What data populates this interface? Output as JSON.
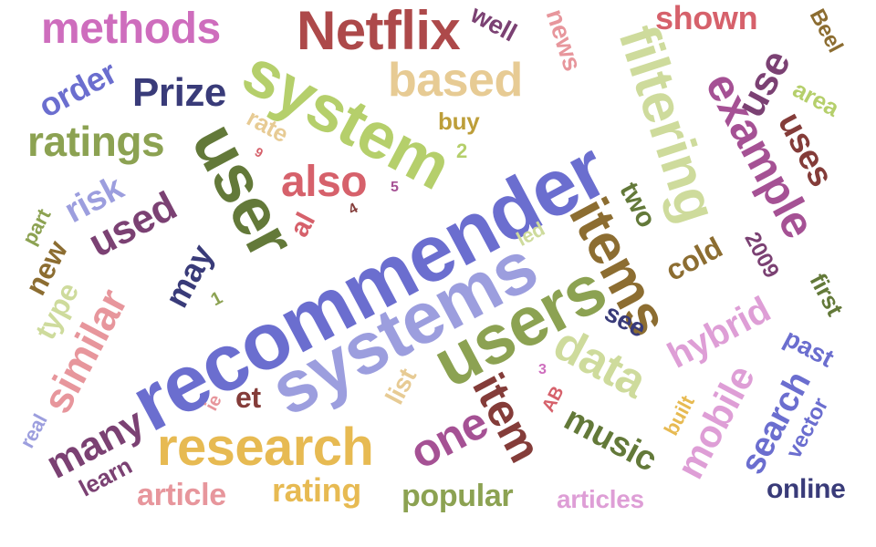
{
  "words": [
    {
      "id": "recommender",
      "text": "recommender",
      "color": "#6b6ecf"
    },
    {
      "id": "systems",
      "text": "systems",
      "color": "#9c9ede"
    },
    {
      "id": "system",
      "text": "system",
      "color": "#b5cf6b"
    },
    {
      "id": "users",
      "text": "users",
      "color": "#8ca252"
    },
    {
      "id": "user",
      "text": "user",
      "color": "#637939"
    },
    {
      "id": "netflix",
      "text": "Netflix",
      "color": "#ad494a"
    },
    {
      "id": "filtering",
      "text": "filtering",
      "color": "#cedb9c"
    },
    {
      "id": "items",
      "text": "items",
      "color": "#8c6d31"
    },
    {
      "id": "research",
      "text": "research",
      "color": "#e7ba52"
    },
    {
      "id": "example",
      "text": "example",
      "color": "#a55194"
    },
    {
      "id": "based",
      "text": "based",
      "color": "#e7cb94"
    },
    {
      "id": "methods",
      "text": "methods",
      "color": "#ce6dbd"
    },
    {
      "id": "data",
      "text": "data",
      "color": "#cedb9c"
    },
    {
      "id": "item",
      "text": "item",
      "color": "#843c39"
    },
    {
      "id": "similar",
      "text": "similar",
      "color": "#e7969c"
    },
    {
      "id": "mobile",
      "text": "mobile",
      "color": "#de9ed6"
    },
    {
      "id": "hybrid",
      "text": "hybrid",
      "color": "#de9ed6"
    },
    {
      "id": "prize",
      "text": "Prize",
      "color": "#393b79"
    },
    {
      "id": "ratings",
      "text": "ratings",
      "color": "#8ca252"
    },
    {
      "id": "also",
      "text": "also",
      "color": "#d6616b"
    },
    {
      "id": "one",
      "text": "one",
      "color": "#a55194"
    },
    {
      "id": "many",
      "text": "many",
      "color": "#7b4173"
    },
    {
      "id": "used",
      "text": "used",
      "color": "#7b4173"
    },
    {
      "id": "use",
      "text": "use",
      "color": "#7b4173"
    },
    {
      "id": "uses",
      "text": "uses",
      "color": "#843c39"
    },
    {
      "id": "search",
      "text": "search",
      "color": "#6b6ecf"
    },
    {
      "id": "music",
      "text": "music",
      "color": "#637939"
    },
    {
      "id": "may",
      "text": "may",
      "color": "#393b79"
    },
    {
      "id": "shown",
      "text": "shown",
      "color": "#d6616b"
    },
    {
      "id": "popular",
      "text": "popular",
      "color": "#8ca252"
    },
    {
      "id": "rating",
      "text": "rating",
      "color": "#e7ba52"
    },
    {
      "id": "article",
      "text": "article",
      "color": "#e7969c"
    },
    {
      "id": "articles",
      "text": "articles",
      "color": "#de9ed6"
    },
    {
      "id": "online",
      "text": "online",
      "color": "#393b79"
    },
    {
      "id": "risk",
      "text": "risk",
      "color": "#9c9ede"
    },
    {
      "id": "order",
      "text": "order",
      "color": "#6b6ecf"
    },
    {
      "id": "cold",
      "text": "cold",
      "color": "#8c6d31"
    },
    {
      "id": "two",
      "text": "two",
      "color": "#637939"
    },
    {
      "id": "well",
      "text": "well",
      "color": "#7b4173"
    },
    {
      "id": "news",
      "text": "news",
      "color": "#e7969c"
    },
    {
      "id": "type",
      "text": "type",
      "color": "#cedb9c"
    },
    {
      "id": "new",
      "text": "new",
      "color": "#8c6d31"
    },
    {
      "id": "learn",
      "text": "learn",
      "color": "#7b4173"
    },
    {
      "id": "see",
      "text": "see",
      "color": "#393b79"
    },
    {
      "id": "past",
      "text": "past",
      "color": "#6b6ecf"
    },
    {
      "id": "first",
      "text": "first",
      "color": "#637939"
    },
    {
      "id": "list",
      "text": "list",
      "color": "#e7cb94"
    },
    {
      "id": "et",
      "text": "et",
      "color": "#843c39"
    },
    {
      "id": "al",
      "text": "al",
      "color": "#d6616b"
    },
    {
      "id": "rate",
      "text": "rate",
      "color": "#e7cb94"
    },
    {
      "id": "buy",
      "text": "buy",
      "color": "#bd9e39"
    },
    {
      "id": "area",
      "text": "area",
      "color": "#b5cf6b"
    },
    {
      "id": "beel",
      "text": "Beel",
      "color": "#8c6d31"
    },
    {
      "id": "y2009",
      "text": "2009",
      "color": "#7b4173"
    },
    {
      "id": "vector",
      "text": "vector",
      "color": "#6b6ecf"
    },
    {
      "id": "built",
      "text": "built",
      "color": "#e7ba52"
    },
    {
      "id": "led",
      "text": "led",
      "color": "#cedb9c"
    },
    {
      "id": "part",
      "text": "part",
      "color": "#8ca252"
    },
    {
      "id": "real",
      "text": "real",
      "color": "#9c9ede"
    },
    {
      "id": "ie",
      "text": "ie",
      "color": "#e7969c"
    },
    {
      "id": "ab",
      "text": "AB",
      "color": "#d6616b"
    },
    {
      "id": "n1",
      "text": "1",
      "color": "#8ca252"
    },
    {
      "id": "n2",
      "text": "2",
      "color": "#b5cf6b"
    },
    {
      "id": "n3",
      "text": "3",
      "color": "#ce6dbd"
    },
    {
      "id": "n4",
      "text": "4",
      "color": "#843c39"
    },
    {
      "id": "n5",
      "text": "5",
      "color": "#a55194"
    },
    {
      "id": "n9",
      "text": "9",
      "color": "#d6616b"
    }
  ]
}
